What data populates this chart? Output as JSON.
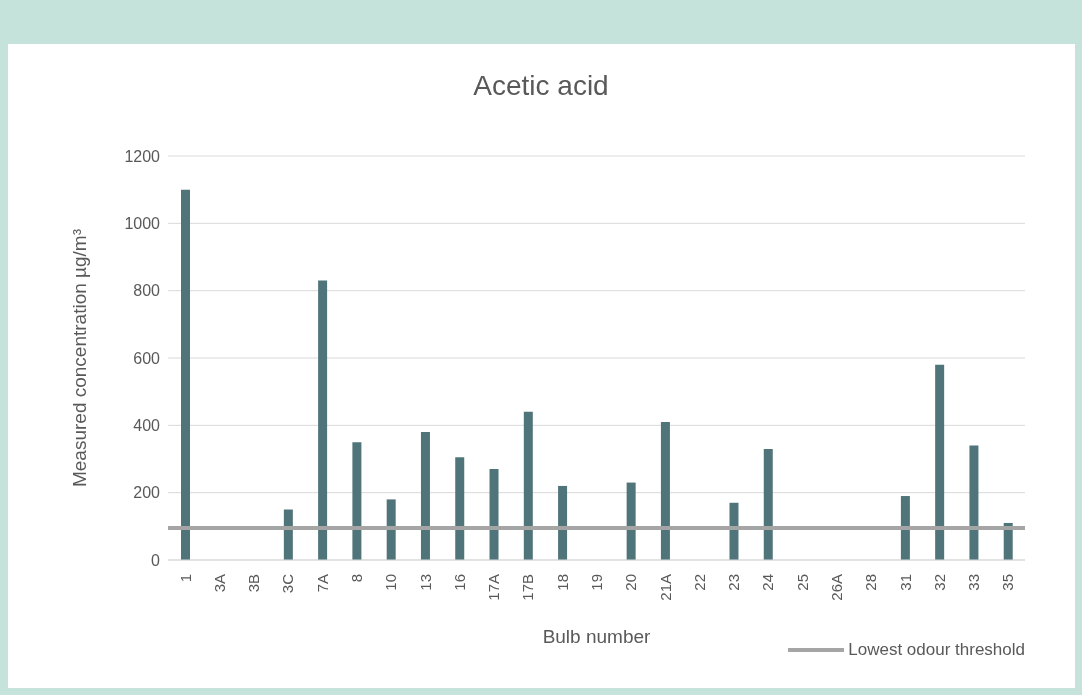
{
  "chart_data": {
    "type": "bar",
    "title": "Acetic acid",
    "xlabel": "Bulb number",
    "ylabel": "Measured concentration µg/m³",
    "categories": [
      "1",
      "3A",
      "3B",
      "3C",
      "7A",
      "8",
      "10",
      "13",
      "16",
      "17A",
      "17B",
      "18",
      "19",
      "20",
      "21A",
      "22",
      "23",
      "24",
      "25",
      "26A",
      "28",
      "31",
      "32",
      "33",
      "35"
    ],
    "values": [
      1100,
      0,
      0,
      150,
      830,
      350,
      180,
      380,
      305,
      270,
      440,
      220,
      0,
      230,
      410,
      0,
      170,
      330,
      0,
      0,
      0,
      190,
      580,
      340,
      110
    ],
    "color": "#4f7479",
    "ylim": [
      0,
      1200
    ],
    "yticks": [
      0,
      200,
      400,
      600,
      800,
      1000,
      1200
    ],
    "grid": "y",
    "ref_lines": [
      {
        "axis": "y",
        "value": 95,
        "label": "Lowest odour threshold",
        "color": "#a5a5a5"
      }
    ],
    "legend": "bottom right"
  }
}
